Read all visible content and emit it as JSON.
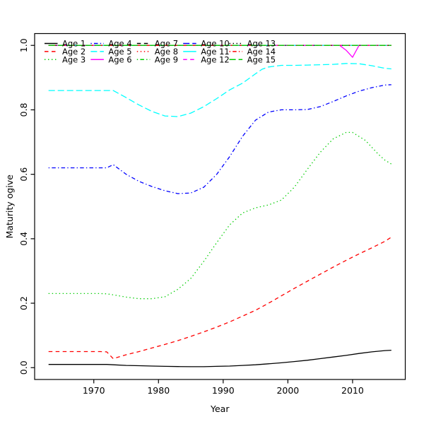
{
  "chart_data": {
    "type": "line",
    "title": "",
    "xlabel": "Year",
    "ylabel": "Maturity ogive",
    "xlim": [
      1963,
      2016
    ],
    "ylim": [
      0.0,
      1.0
    ],
    "x_ticks": [
      1970,
      1980,
      1990,
      2000,
      2010
    ],
    "y_ticks": [
      0.0,
      0.2,
      0.4,
      0.6,
      0.8,
      1.0
    ],
    "y_tick_labels": [
      "0.0",
      "0.2",
      "0.4",
      "0.6",
      "0.8",
      "1.0"
    ],
    "grid": false,
    "legend_position": "top-left-inside",
    "legend_columns": 5,
    "legend_rows": 3,
    "palette": {
      "black": "#000000",
      "red": "#FF0000",
      "green": "#00CD00",
      "blue": "#0000FF",
      "cyan": "#00FFFF",
      "magenta": "#FF00FF"
    },
    "series": [
      {
        "name": "Age 1",
        "color": "#000000",
        "linetype": "solid",
        "points": [
          [
            1963,
            0.01
          ],
          [
            1966,
            0.01
          ],
          [
            1969,
            0.01
          ],
          [
            1971,
            0.01
          ],
          [
            1972,
            0.01
          ],
          [
            1973,
            0.009
          ],
          [
            1975,
            0.007
          ],
          [
            1977,
            0.006
          ],
          [
            1979,
            0.005
          ],
          [
            1981,
            0.004
          ],
          [
            1983,
            0.0035
          ],
          [
            1985,
            0.003
          ],
          [
            1987,
            0.003
          ],
          [
            1989,
            0.004
          ],
          [
            1991,
            0.005
          ],
          [
            1993,
            0.007
          ],
          [
            1995,
            0.009
          ],
          [
            1997,
            0.012
          ],
          [
            1999,
            0.015
          ],
          [
            2001,
            0.019
          ],
          [
            2003,
            0.023
          ],
          [
            2005,
            0.028
          ],
          [
            2007,
            0.033
          ],
          [
            2009,
            0.038
          ],
          [
            2011,
            0.044
          ],
          [
            2013,
            0.049
          ],
          [
            2015,
            0.053
          ],
          [
            2016,
            0.054
          ]
        ]
      },
      {
        "name": "Age 2",
        "color": "#FF0000",
        "linetype": "dashed",
        "points": [
          [
            1963,
            0.05
          ],
          [
            1966,
            0.05
          ],
          [
            1969,
            0.05
          ],
          [
            1971,
            0.05
          ],
          [
            1972,
            0.049
          ],
          [
            1973,
            0.028
          ],
          [
            1975,
            0.04
          ],
          [
            1977,
            0.05
          ],
          [
            1979,
            0.061
          ],
          [
            1981,
            0.072
          ],
          [
            1983,
            0.084
          ],
          [
            1985,
            0.097
          ],
          [
            1987,
            0.111
          ],
          [
            1989,
            0.126
          ],
          [
            1991,
            0.142
          ],
          [
            1993,
            0.16
          ],
          [
            1995,
            0.178
          ],
          [
            1997,
            0.2
          ],
          [
            1999,
            0.223
          ],
          [
            2001,
            0.246
          ],
          [
            2003,
            0.268
          ],
          [
            2005,
            0.29
          ],
          [
            2007,
            0.312
          ],
          [
            2009,
            0.333
          ],
          [
            2011,
            0.353
          ],
          [
            2013,
            0.372
          ],
          [
            2015,
            0.392
          ],
          [
            2016,
            0.405
          ]
        ]
      },
      {
        "name": "Age 3",
        "color": "#00CD00",
        "linetype": "dotted",
        "points": [
          [
            1963,
            0.23
          ],
          [
            1966,
            0.23
          ],
          [
            1969,
            0.23
          ],
          [
            1971,
            0.23
          ],
          [
            1972,
            0.229
          ],
          [
            1973,
            0.226
          ],
          [
            1975,
            0.219
          ],
          [
            1977,
            0.214
          ],
          [
            1979,
            0.214
          ],
          [
            1981,
            0.22
          ],
          [
            1983,
            0.243
          ],
          [
            1985,
            0.277
          ],
          [
            1987,
            0.33
          ],
          [
            1989,
            0.388
          ],
          [
            1991,
            0.443
          ],
          [
            1993,
            0.48
          ],
          [
            1995,
            0.496
          ],
          [
            1997,
            0.505
          ],
          [
            1999,
            0.52
          ],
          [
            2001,
            0.56
          ],
          [
            2003,
            0.615
          ],
          [
            2005,
            0.668
          ],
          [
            2007,
            0.71
          ],
          [
            2009,
            0.73
          ],
          [
            2010,
            0.73
          ],
          [
            2012,
            0.705
          ],
          [
            2014,
            0.662
          ],
          [
            2015,
            0.644
          ],
          [
            2016,
            0.632
          ]
        ]
      },
      {
        "name": "Age 4",
        "color": "#0000FF",
        "linetype": "dotdash",
        "points": [
          [
            1963,
            0.62
          ],
          [
            1966,
            0.62
          ],
          [
            1969,
            0.62
          ],
          [
            1971,
            0.62
          ],
          [
            1972,
            0.62
          ],
          [
            1973,
            0.63
          ],
          [
            1975,
            0.6
          ],
          [
            1977,
            0.578
          ],
          [
            1979,
            0.562
          ],
          [
            1981,
            0.549
          ],
          [
            1983,
            0.54
          ],
          [
            1985,
            0.542
          ],
          [
            1987,
            0.56
          ],
          [
            1989,
            0.6
          ],
          [
            1991,
            0.655
          ],
          [
            1993,
            0.718
          ],
          [
            1995,
            0.768
          ],
          [
            1997,
            0.793
          ],
          [
            1999,
            0.8
          ],
          [
            2001,
            0.8
          ],
          [
            2003,
            0.801
          ],
          [
            2005,
            0.81
          ],
          [
            2007,
            0.826
          ],
          [
            2009,
            0.843
          ],
          [
            2011,
            0.858
          ],
          [
            2013,
            0.869
          ],
          [
            2015,
            0.877
          ],
          [
            2016,
            0.878
          ]
        ]
      },
      {
        "name": "Age 5",
        "color": "#00FFFF",
        "linetype": "longdash",
        "points": [
          [
            1963,
            0.86
          ],
          [
            1966,
            0.86
          ],
          [
            1969,
            0.86
          ],
          [
            1971,
            0.86
          ],
          [
            1973,
            0.86
          ],
          [
            1975,
            0.838
          ],
          [
            1977,
            0.815
          ],
          [
            1979,
            0.795
          ],
          [
            1981,
            0.781
          ],
          [
            1983,
            0.779
          ],
          [
            1985,
            0.79
          ],
          [
            1987,
            0.81
          ],
          [
            1989,
            0.835
          ],
          [
            1991,
            0.862
          ],
          [
            1993,
            0.883
          ],
          [
            1995,
            0.912
          ],
          [
            1996,
            0.926
          ],
          [
            1997,
            0.933
          ],
          [
            1999,
            0.938
          ],
          [
            2001,
            0.938
          ],
          [
            2003,
            0.939
          ],
          [
            2005,
            0.94
          ],
          [
            2007,
            0.941
          ],
          [
            2009,
            0.944
          ],
          [
            2011,
            0.943
          ],
          [
            2013,
            0.937
          ],
          [
            2015,
            0.929
          ],
          [
            2016,
            0.927
          ]
        ]
      },
      {
        "name": "Age 6",
        "color": "#FF00FF",
        "linetype": "solid",
        "points": [
          [
            1963,
            1.0
          ],
          [
            2008,
            1.0
          ],
          [
            2009,
            0.985
          ],
          [
            2010,
            0.963
          ],
          [
            2011,
            1.0
          ],
          [
            2016,
            1.0
          ]
        ]
      },
      {
        "name": "Age 7",
        "color": "#000000",
        "linetype": "dashed",
        "points": [
          [
            1963,
            1.0
          ],
          [
            2016,
            1.0
          ]
        ]
      },
      {
        "name": "Age 8",
        "color": "#FF0000",
        "linetype": "dotted",
        "points": [
          [
            1963,
            1.0
          ],
          [
            2016,
            1.0
          ]
        ]
      },
      {
        "name": "Age 9",
        "color": "#00CD00",
        "linetype": "dotdash",
        "points": [
          [
            1963,
            1.0
          ],
          [
            2016,
            1.0
          ]
        ]
      },
      {
        "name": "Age 10",
        "color": "#0000FF",
        "linetype": "longdash",
        "points": [
          [
            1963,
            1.0
          ],
          [
            2016,
            1.0
          ]
        ]
      },
      {
        "name": "Age 11",
        "color": "#00FFFF",
        "linetype": "solid",
        "points": [
          [
            1963,
            1.0
          ],
          [
            2016,
            1.0
          ]
        ]
      },
      {
        "name": "Age 12",
        "color": "#FF00FF",
        "linetype": "dashed",
        "points": [
          [
            1963,
            1.0
          ],
          [
            2016,
            1.0
          ]
        ]
      },
      {
        "name": "Age 13",
        "color": "#000000",
        "linetype": "dotted",
        "points": [
          [
            1963,
            1.0
          ],
          [
            2016,
            1.0
          ]
        ]
      },
      {
        "name": "Age 14",
        "color": "#FF0000",
        "linetype": "dotdash",
        "points": [
          [
            1963,
            1.0
          ],
          [
            2016,
            1.0
          ]
        ]
      },
      {
        "name": "Age 15",
        "color": "#00CD00",
        "linetype": "longdash",
        "points": [
          [
            1963,
            1.0
          ],
          [
            2016,
            1.0
          ]
        ]
      }
    ]
  }
}
